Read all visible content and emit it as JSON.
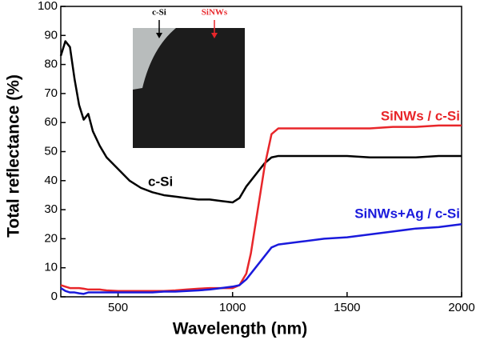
{
  "chart_data": {
    "type": "line",
    "xlabel": "Wavelength (nm)",
    "ylabel": "Total reflectance (%)",
    "x": [
      250,
      270,
      290,
      310,
      330,
      350,
      370,
      390,
      420,
      450,
      500,
      550,
      600,
      650,
      700,
      750,
      800,
      850,
      900,
      950,
      1000,
      1030,
      1060,
      1080,
      1110,
      1140,
      1170,
      1200,
      1300,
      1400,
      1500,
      1600,
      1700,
      1800,
      1900,
      2000
    ],
    "series": [
      {
        "name": "c-Si",
        "color": "#000000",
        "values": [
          83,
          88,
          86,
          75,
          66,
          61,
          63,
          57,
          52,
          48,
          44,
          40,
          37.5,
          36,
          35,
          34.5,
          34,
          33.5,
          33.5,
          33,
          32.5,
          34,
          38,
          40,
          43,
          46,
          48,
          48.5,
          48.5,
          48.5,
          48.5,
          48,
          48,
          48,
          48.5,
          48.5
        ]
      },
      {
        "name": "SiNWs / c-Si",
        "color": "#e8262a",
        "values": [
          4,
          3.5,
          3,
          3,
          3,
          2.8,
          2.5,
          2.5,
          2.5,
          2.2,
          2,
          2,
          2,
          2,
          2,
          2.2,
          2.5,
          2.8,
          3,
          3,
          3,
          4,
          8,
          15,
          30,
          45,
          56,
          58,
          58,
          58,
          58,
          58,
          58.5,
          58.5,
          59,
          59
        ]
      },
      {
        "name": "SiNWs+Ag / c-Si",
        "color": "#1a1adc",
        "values": [
          3,
          2,
          1.5,
          1.5,
          1.2,
          1,
          1.5,
          1.5,
          1.5,
          1.5,
          1.5,
          1.5,
          1.5,
          1.5,
          1.8,
          1.8,
          2,
          2.2,
          2.5,
          3,
          3.5,
          4,
          6,
          8,
          11,
          14,
          17,
          18,
          19,
          20,
          20.5,
          21.5,
          22.5,
          23.5,
          24,
          25
        ]
      }
    ],
    "xlim": [
      250,
      2000
    ],
    "xticks": [
      500,
      1000,
      1500,
      2000
    ],
    "ylim": [
      0,
      100
    ],
    "yticks": [
      0,
      10,
      20,
      30,
      40,
      50,
      60,
      70,
      80,
      90,
      100
    ],
    "inset": {
      "labels": [
        "c-Si",
        "SiNWs"
      ],
      "label_colors": [
        "#000000",
        "#e8262a"
      ]
    }
  }
}
